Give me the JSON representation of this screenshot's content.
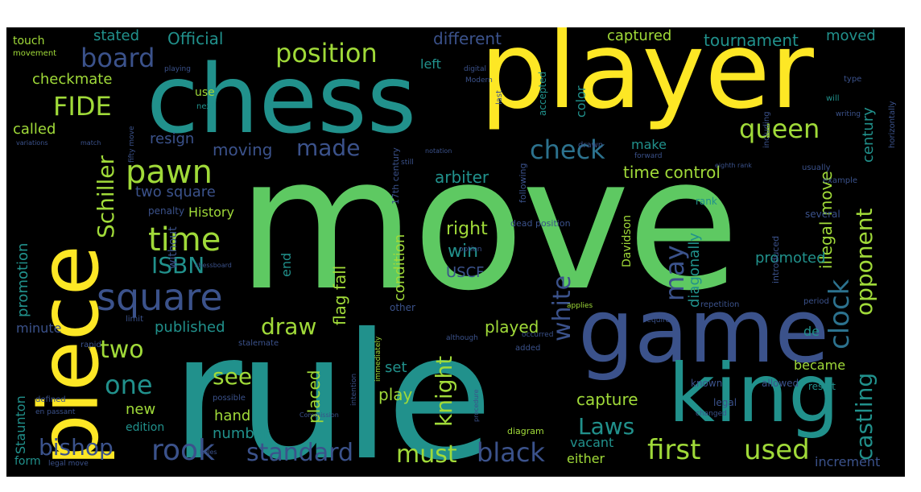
{
  "colors": {
    "background": "#000000",
    "yellow": "#fde725",
    "green": "#5ec962",
    "teal": "#21918c",
    "blue": "#3b528b",
    "purple": "#440154",
    "lightgreen": "#a0da39",
    "cyan": "#2c728e"
  },
  "words": [
    {
      "text": "move",
      "color": "green"
    },
    {
      "text": "rule",
      "color": "teal"
    },
    {
      "text": "player",
      "color": "yellow"
    },
    {
      "text": "chess",
      "color": "teal"
    },
    {
      "text": "piece",
      "color": "yellow"
    },
    {
      "text": "game",
      "color": "blue"
    },
    {
      "text": "king",
      "color": "teal"
    },
    {
      "text": "square",
      "color": "blue"
    },
    {
      "text": "pawn",
      "color": "lightgreen"
    },
    {
      "text": "time",
      "color": "lightgreen"
    },
    {
      "text": "position",
      "color": "lightgreen"
    },
    {
      "text": "board",
      "color": "blue"
    },
    {
      "text": "FIDE",
      "color": "lightgreen"
    },
    {
      "text": "queen",
      "color": "lightgreen"
    },
    {
      "text": "check",
      "color": "cyan"
    },
    {
      "text": "clock",
      "color": "cyan"
    },
    {
      "text": "Schiller",
      "color": "lightgreen"
    },
    {
      "text": "ISBN",
      "color": "teal"
    },
    {
      "text": "rook",
      "color": "blue"
    },
    {
      "text": "standard",
      "color": "blue"
    },
    {
      "text": "must",
      "color": "lightgreen"
    },
    {
      "text": "black",
      "color": "blue"
    },
    {
      "text": "first",
      "color": "lightgreen"
    },
    {
      "text": "used",
      "color": "lightgreen"
    },
    {
      "text": "castling",
      "color": "teal"
    },
    {
      "text": "opponent",
      "color": "lightgreen"
    },
    {
      "text": "white",
      "color": "blue"
    },
    {
      "text": "knight",
      "color": "lightgreen"
    },
    {
      "text": "one",
      "color": "teal"
    },
    {
      "text": "two",
      "color": "lightgreen"
    },
    {
      "text": "draw",
      "color": "lightgreen"
    },
    {
      "text": "may",
      "color": "blue"
    },
    {
      "text": "made",
      "color": "blue"
    },
    {
      "text": "bishop",
      "color": "blue"
    },
    {
      "text": "Laws",
      "color": "teal"
    },
    {
      "text": "see",
      "color": "lightgreen"
    },
    {
      "text": "Official",
      "color": "teal"
    },
    {
      "text": "different",
      "color": "blue"
    },
    {
      "text": "captured",
      "color": "lightgreen"
    },
    {
      "text": "tournament",
      "color": "teal"
    },
    {
      "text": "moved",
      "color": "teal"
    },
    {
      "text": "stated",
      "color": "teal"
    },
    {
      "text": "checkmate",
      "color": "lightgreen"
    },
    {
      "text": "called",
      "color": "lightgreen"
    },
    {
      "text": "resign",
      "color": "blue"
    },
    {
      "text": "moving",
      "color": "blue"
    },
    {
      "text": "time control",
      "color": "lightgreen"
    },
    {
      "text": "make",
      "color": "teal"
    },
    {
      "text": "arbiter",
      "color": "teal"
    },
    {
      "text": "right",
      "color": "lightgreen"
    },
    {
      "text": "win",
      "color": "teal"
    },
    {
      "text": "USCF",
      "color": "blue"
    },
    {
      "text": "illegal move",
      "color": "lightgreen"
    },
    {
      "text": "century",
      "color": "teal"
    },
    {
      "text": "diagonally",
      "color": "teal"
    },
    {
      "text": "promoted",
      "color": "teal"
    },
    {
      "text": "published",
      "color": "teal"
    },
    {
      "text": "played",
      "color": "lightgreen"
    },
    {
      "text": "capture",
      "color": "lightgreen"
    },
    {
      "text": "new",
      "color": "lightgreen"
    },
    {
      "text": "hand",
      "color": "lightgreen"
    },
    {
      "text": "number",
      "color": "teal"
    },
    {
      "text": "placed",
      "color": "lightgreen"
    },
    {
      "text": "play",
      "color": "lightgreen"
    },
    {
      "text": "set",
      "color": "teal"
    },
    {
      "text": "flag fall",
      "color": "lightgreen"
    },
    {
      "text": "condition",
      "color": "lightgreen"
    },
    {
      "text": "end",
      "color": "teal"
    },
    {
      "text": "History",
      "color": "lightgreen"
    },
    {
      "text": "two square",
      "color": "blue"
    },
    {
      "text": "promotion",
      "color": "teal"
    },
    {
      "text": "without",
      "color": "blue"
    },
    {
      "text": "minute",
      "color": "blue"
    },
    {
      "text": "Staunton",
      "color": "teal"
    },
    {
      "text": "edition",
      "color": "teal"
    },
    {
      "text": "either",
      "color": "lightgreen"
    },
    {
      "text": "vacant",
      "color": "teal"
    },
    {
      "text": "became",
      "color": "lightgreen"
    },
    {
      "text": "increment",
      "color": "blue"
    },
    {
      "text": "de",
      "color": "teal"
    },
    {
      "text": "color",
      "color": "teal"
    },
    {
      "text": "left",
      "color": "teal"
    },
    {
      "text": "use",
      "color": "lightgreen"
    },
    {
      "text": "touch",
      "color": "lightgreen"
    },
    {
      "text": "movement",
      "color": "lightgreen"
    },
    {
      "text": "Davidson",
      "color": "lightgreen"
    },
    {
      "text": "form",
      "color": "teal"
    },
    {
      "text": "rank",
      "color": "teal"
    },
    {
      "text": "result",
      "color": "teal"
    },
    {
      "text": "next",
      "color": "teal"
    },
    {
      "text": "penalty",
      "color": "blue"
    },
    {
      "text": "playing",
      "color": "blue"
    },
    {
      "text": "digital",
      "color": "blue"
    },
    {
      "text": "Modern",
      "color": "blue"
    },
    {
      "text": "last",
      "color": "blue"
    },
    {
      "text": "accepted",
      "color": "teal"
    },
    {
      "text": "type",
      "color": "blue"
    },
    {
      "text": "will",
      "color": "teal"
    },
    {
      "text": "several",
      "color": "blue"
    },
    {
      "text": "allowed",
      "color": "blue"
    },
    {
      "text": "known",
      "color": "blue"
    },
    {
      "text": "legal",
      "color": "blue"
    },
    {
      "text": "diagram",
      "color": "lightgreen"
    },
    {
      "text": "changed",
      "color": "blue"
    },
    {
      "text": "defined",
      "color": "blue"
    },
    {
      "text": "en passant",
      "color": "blue"
    },
    {
      "text": "possible",
      "color": "blue"
    },
    {
      "text": "other",
      "color": "blue"
    },
    {
      "text": "immediately",
      "color": "lightgreen"
    },
    {
      "text": "intention",
      "color": "blue"
    },
    {
      "text": "procedure",
      "color": "blue"
    },
    {
      "text": "introduced",
      "color": "blue"
    },
    {
      "text": "following",
      "color": "blue"
    },
    {
      "text": "17th century",
      "color": "blue"
    },
    {
      "text": "usually",
      "color": "blue"
    },
    {
      "text": "example",
      "color": "blue"
    },
    {
      "text": "dead position",
      "color": "blue"
    },
    {
      "text": "added",
      "color": "blue"
    },
    {
      "text": "applies",
      "color": "lightgreen"
    },
    {
      "text": "required",
      "color": "blue"
    },
    {
      "text": "repetition",
      "color": "blue"
    },
    {
      "text": "period",
      "color": "blue"
    },
    {
      "text": "drawn",
      "color": "blue"
    },
    {
      "text": "forward",
      "color": "blue"
    },
    {
      "text": "including",
      "color": "blue"
    },
    {
      "text": "horizontally",
      "color": "blue"
    },
    {
      "text": "stalemate",
      "color": "blue"
    },
    {
      "text": "rapid",
      "color": "blue"
    },
    {
      "text": "limit",
      "color": "blue"
    },
    {
      "text": "occurred",
      "color": "blue"
    },
    {
      "text": "although",
      "color": "blue"
    },
    {
      "text": "option",
      "color": "blue"
    },
    {
      "text": "still",
      "color": "blue"
    },
    {
      "text": "writing",
      "color": "blue"
    },
    {
      "text": "Commission",
      "color": "blue"
    },
    {
      "text": "fifty move",
      "color": "blue"
    },
    {
      "text": "match",
      "color": "blue"
    },
    {
      "text": "variations",
      "color": "blue"
    },
    {
      "text": "notation",
      "color": "blue"
    },
    {
      "text": "eighth rank",
      "color": "blue"
    },
    {
      "text": "chessboard",
      "color": "blue"
    },
    {
      "text": "legal move",
      "color": "blue"
    },
    {
      "text": "Rules",
      "color": "blue"
    }
  ]
}
